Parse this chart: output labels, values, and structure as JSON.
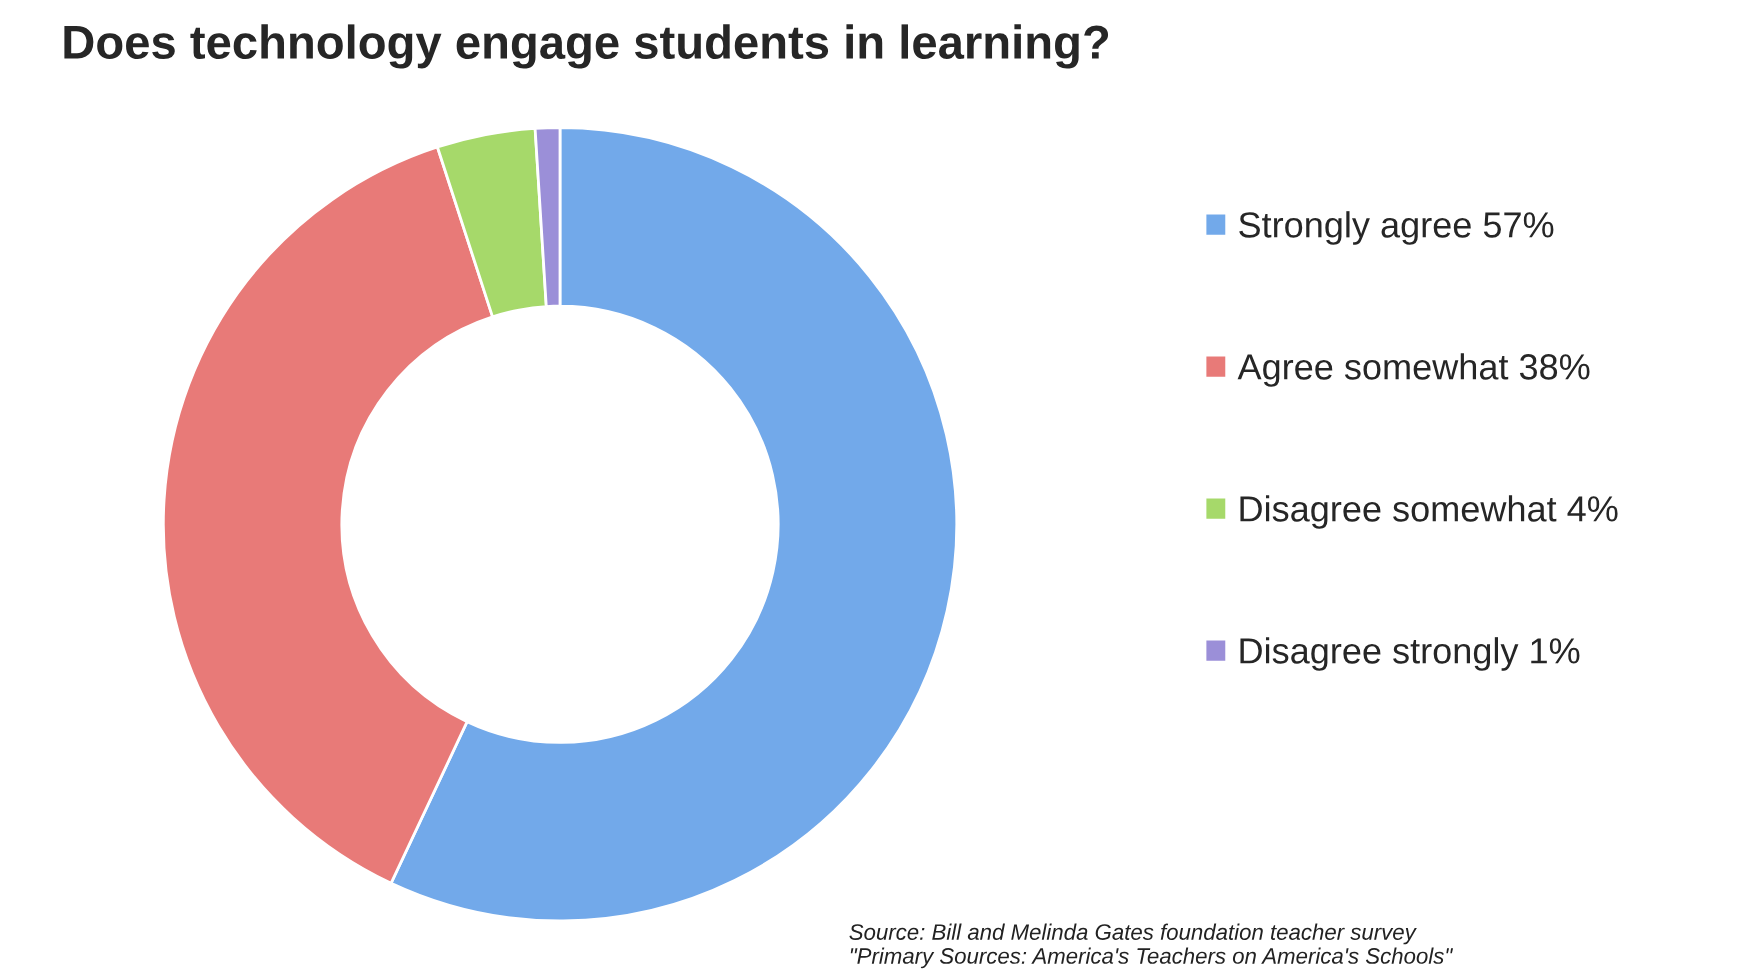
{
  "chart_data": {
    "type": "donut",
    "title": "Does technology engage students in learning?",
    "categories": [
      "Strongly agree 57%",
      "Agree somewhat 38%",
      "Disagree somewhat 4%",
      "Disagree strongly 1%"
    ],
    "values": [
      57,
      38,
      4,
      1
    ],
    "colors": [
      "#72a9ea",
      "#e87a78",
      "#a6d96a",
      "#9b8fd8"
    ],
    "legend": "right",
    "annotations": [
      "Source: Bill and Melinda Gates foundation teacher survey\n\"Primary Sources: America's Teachers on America's Schools\""
    ]
  }
}
